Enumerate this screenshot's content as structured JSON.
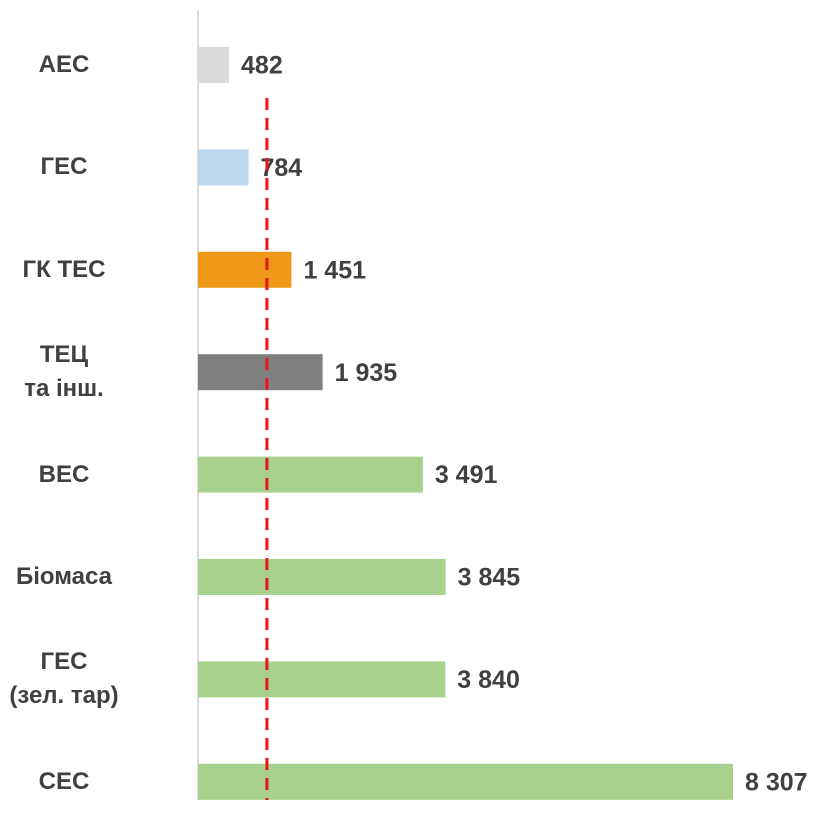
{
  "chart_data": {
    "type": "hbar",
    "categories": [
      "АЕС",
      "ГЕС",
      "ГК ТЕС",
      "ТЕЦ\nта інш.",
      "ВЕС",
      "Біомаса",
      "ГЕС\n(зел. тар)",
      "СЕС"
    ],
    "values": [
      482,
      784,
      1451,
      1935,
      3491,
      3845,
      3840,
      8307
    ],
    "value_labels": [
      "482",
      "784",
      "1 451",
      "1 935",
      "3 491",
      "3 845",
      "3 840",
      "8 307"
    ],
    "colors": [
      "#d9d9d9",
      "#bdd7ee",
      "#ee9a18",
      "#7f7f7f",
      "#a9d18e",
      "#a9d18e",
      "#a9d18e",
      "#a9d18e"
    ],
    "xlim": [
      0,
      8307
    ],
    "reference_line": {
      "value": 1070,
      "color": "#e8161b"
    }
  }
}
